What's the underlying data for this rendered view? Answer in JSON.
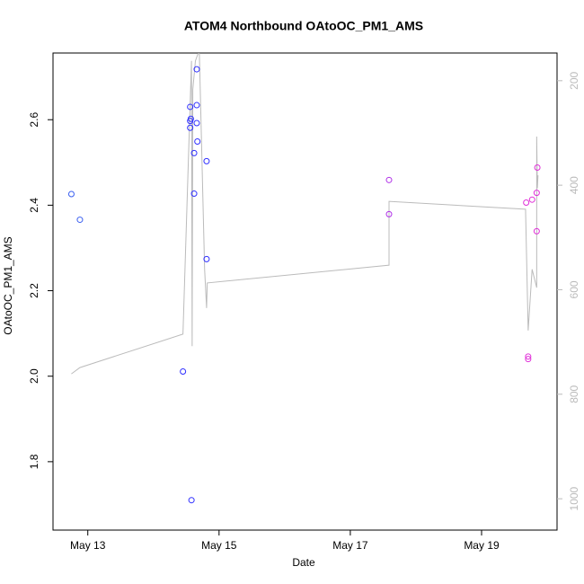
{
  "chart_data": {
    "type": "scatter",
    "title": "ATOM4 Northbound OAtoOC_PM1_AMS",
    "x_label": "Date",
    "y_label": "OAtoOC_PM1_AMS",
    "xlim": [
      12.47,
      20.15
    ],
    "xticks": [
      {
        "value": 13,
        "label": "May 13"
      },
      {
        "value": 15,
        "label": "May 15"
      },
      {
        "value": 17,
        "label": "May 17"
      },
      {
        "value": 19,
        "label": "May 19"
      }
    ],
    "ylim": [
      1.64,
      2.756
    ],
    "yticks": [
      {
        "value": 1.8,
        "label": "1.8"
      },
      {
        "value": 2.0,
        "label": "2.0"
      },
      {
        "value": 2.2,
        "label": "2.2"
      },
      {
        "value": 2.4,
        "label": "2.4"
      },
      {
        "value": 2.6,
        "label": "2.6"
      }
    ],
    "y2lim": [
      1060,
      147
    ],
    "y2ticks": [
      200,
      400,
      600,
      800,
      1000
    ],
    "y2_color": "#bbbbbb",
    "series": [
      {
        "x": [
          12.75,
          12.88,
          14.45,
          14.58,
          14.56,
          14.57,
          14.56,
          14.56,
          14.66,
          14.66,
          14.66,
          14.67,
          14.62,
          14.62,
          14.81,
          14.81,
          17.59,
          17.59,
          19.68,
          19.77,
          19.84,
          19.85,
          19.84,
          19.71,
          19.71
        ],
        "values": [
          2.426,
          2.366,
          2.011,
          1.71,
          2.63,
          2.602,
          2.597,
          2.581,
          2.718,
          2.634,
          2.592,
          2.549,
          2.522,
          2.427,
          2.503,
          2.274,
          2.459,
          2.379,
          2.406,
          2.413,
          2.339,
          2.488,
          2.429,
          2.046,
          2.04
        ],
        "colors": [
          "#3a5ff0",
          "#3a5ff0",
          "#3030ff",
          "#3030ff",
          "#3030ff",
          "#3030ff",
          "#3030ff",
          "#3030ff",
          "#3030ff",
          "#3030ff",
          "#3030ff",
          "#3030ff",
          "#3030ff",
          "#3030ff",
          "#3030ff",
          "#3030ff",
          "#b030e8",
          "#b030e8",
          "#e030d8",
          "#e030d8",
          "#e030d8",
          "#e030d8",
          "#e030d8",
          "#e030d8",
          "#e030d8"
        ]
      },
      {
        "type": "line",
        "axis": "y2",
        "color": "#bbbbbb",
        "x": [
          12.75,
          12.88,
          14.45,
          14.58,
          14.59,
          14.6,
          14.64,
          14.68,
          14.7,
          14.78,
          14.81,
          14.82,
          17.59,
          17.59,
          19.67,
          19.71,
          19.77,
          19.84,
          19.84,
          19.85,
          19.86
        ],
        "values": [
          761,
          749,
          685,
          162,
          708,
          217,
          162,
          148,
          148,
          561,
          635,
          587,
          553,
          431,
          446,
          678,
          561,
          596,
          307,
          406,
          381
        ]
      }
    ]
  }
}
